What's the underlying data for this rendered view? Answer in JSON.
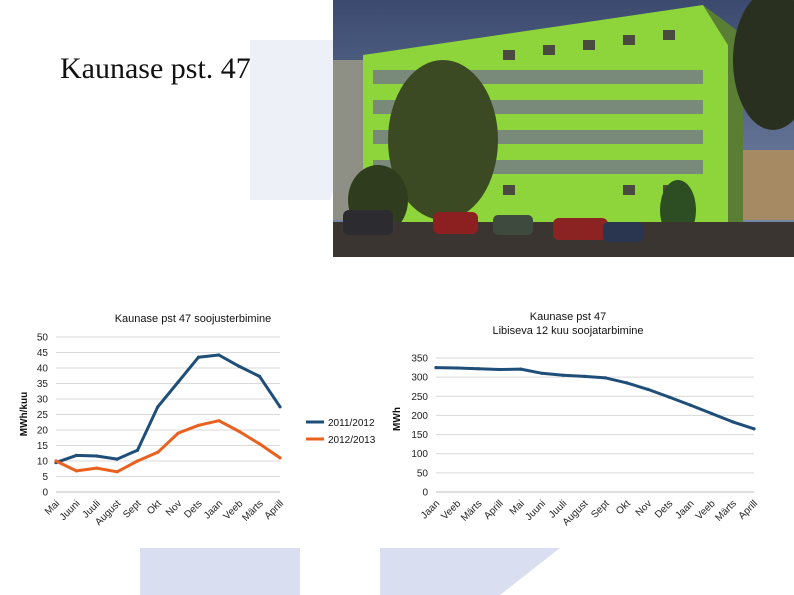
{
  "slide": {
    "title": "Kaunase pst. 47"
  },
  "colors": {
    "series_blue": "#1f4e79",
    "series_orange": "#e8611f",
    "grid": "#d9d9d9",
    "background_watermark": "#dfe3f3"
  },
  "chart_data": [
    {
      "type": "line",
      "title": "Kaunase pst 47 soojusterbimine",
      "ylabel": "MWh/kuu",
      "xlabel": "",
      "categories": [
        "Mai",
        "Juuni",
        "Juuli",
        "August",
        "Sept",
        "Okt",
        "Nov",
        "Dets",
        "Jaan",
        "Veeb",
        "Märts",
        "Aprill"
      ],
      "ylim": [
        0,
        50
      ],
      "yticks": [
        "0",
        "5",
        "10",
        "15",
        "20",
        "25",
        "30",
        "35",
        "40",
        "45",
        "50"
      ],
      "grid": true,
      "legend_position": "right",
      "series": [
        {
          "name": "2011/2012",
          "color": "#1f4e79",
          "values": [
            9.5,
            11.8,
            11.6,
            10.6,
            13.5,
            27.5,
            35.5,
            43.5,
            44.2,
            40.5,
            37.3,
            27.5
          ]
        },
        {
          "name": "2012/2013",
          "color": "#e8611f",
          "values": [
            10,
            6.8,
            7.7,
            6.5,
            10,
            12.8,
            19,
            21.5,
            23,
            19.5,
            15.5,
            11
          ]
        }
      ]
    },
    {
      "type": "line",
      "title": "Kaunase pst 47",
      "subtitle": "Libiseva 12 kuu soojatarbimine",
      "ylabel": "MWh",
      "xlabel": "",
      "categories": [
        "Jaan",
        "Veeb",
        "Märts",
        "Aprill",
        "Mai",
        "Juuni",
        "Juuli",
        "August",
        "Sept",
        "Okt",
        "Nov",
        "Dets",
        "Jaan",
        "Veeb",
        "Märts",
        "Aprill"
      ],
      "ylim": [
        0,
        350
      ],
      "yticks": [
        "0",
        "50",
        "100",
        "150",
        "200",
        "250",
        "300",
        "350"
      ],
      "grid": true,
      "legend_position": "none",
      "series": [
        {
          "color": "#1f4e79",
          "values": [
            325,
            324,
            322,
            320,
            321,
            310,
            305,
            302,
            298,
            285,
            268,
            248,
            227,
            205,
            183,
            165
          ]
        }
      ]
    }
  ]
}
